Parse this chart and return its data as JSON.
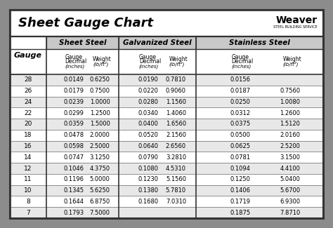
{
  "title": "Sheet Gauge Chart",
  "gauges": [
    "28",
    "26",
    "24",
    "22",
    "20",
    "18",
    "16",
    "14",
    "12",
    "11",
    "10",
    "8",
    "7"
  ],
  "sheet_steel_dec": [
    "0.0149",
    "0.0179",
    "0.0239",
    "0.0299",
    "0.0359",
    "0.0478",
    "0.0598",
    "0.0747",
    "0.1046",
    "0.1196",
    "0.1345",
    "0.1644",
    "0.1793"
  ],
  "sheet_steel_wt": [
    "0.6250",
    "0.7500",
    "1.0000",
    "1.2500",
    "1.5000",
    "2.0000",
    "2.5000",
    "3.1250",
    "4.3750",
    "5.0000",
    "5.6250",
    "6.8750",
    "7.5000"
  ],
  "galv_dec": [
    "0.0190",
    "0.0220",
    "0.0280",
    "0.0340",
    "0.0400",
    "0.0520",
    "0.0640",
    "0.0790",
    "0.1080",
    "0.1230",
    "0.1380",
    "0.1680",
    ""
  ],
  "galv_wt": [
    "0.7810",
    "0.9060",
    "1.1560",
    "1.4060",
    "1.6560",
    "2.1560",
    "2.6560",
    "3.2810",
    "4.5310",
    "5.1560",
    "5.7810",
    "7.0310",
    ""
  ],
  "stain_dec": [
    "0.0156",
    "0.0187",
    "0.0250",
    "0.0312",
    "0.0375",
    "0.0500",
    "0.0625",
    "0.0781",
    "0.1094",
    "0.1250",
    "0.1406",
    "0.1719",
    "0.1875"
  ],
  "stain_wt": [
    "",
    "0.7560",
    "1.0080",
    "1.2600",
    "1.5120",
    "2.0160",
    "2.5200",
    "3.1500",
    "4.4100",
    "5.0400",
    "5.6700",
    "6.9300",
    "7.8710"
  ],
  "outer_bg": "#8c8c8c",
  "inner_bg": "#ffffff",
  "header_gray": "#c8c8c8",
  "row_light": "#e8e8e8",
  "row_white": "#ffffff",
  "border_dark": "#333333",
  "border_light": "#666666"
}
